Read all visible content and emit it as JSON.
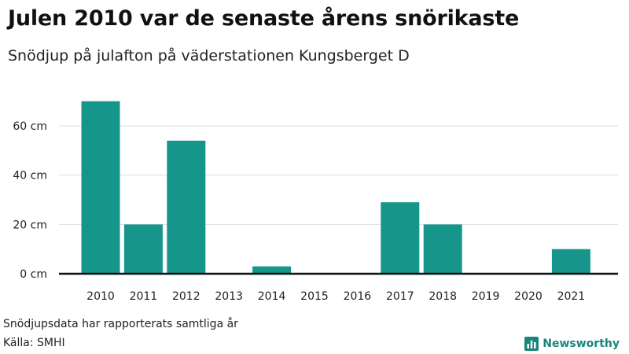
{
  "title": "Julen 2010 var de senaste årens snörikaste",
  "subtitle": "Snödjup på julafton på väderstationen Kungsberget D",
  "footer": {
    "note": "Snödjupsdata har rapporterats samtliga år",
    "source": "Källa: SMHI",
    "brand": "Newsworthy",
    "brand_icon": "bar-chart-logo-icon"
  },
  "colors": {
    "bar": "#16968a",
    "grid": "#dcdcdc",
    "axis": "#111111",
    "brand": "#18867a"
  },
  "chart_data": {
    "type": "bar",
    "categories": [
      "2010",
      "2011",
      "2012",
      "2013",
      "2014",
      "2015",
      "2016",
      "2017",
      "2018",
      "2019",
      "2020",
      "2021"
    ],
    "values": [
      70,
      20,
      54,
      0,
      3,
      0,
      0,
      29,
      20,
      0,
      0,
      10
    ],
    "ylim": [
      0,
      75
    ],
    "yticks": [
      0,
      20,
      40,
      60
    ],
    "ytick_labels": [
      "0 cm",
      "20 cm",
      "40 cm",
      "60 cm"
    ],
    "grid": true,
    "xlabel": "",
    "ylabel": ""
  }
}
